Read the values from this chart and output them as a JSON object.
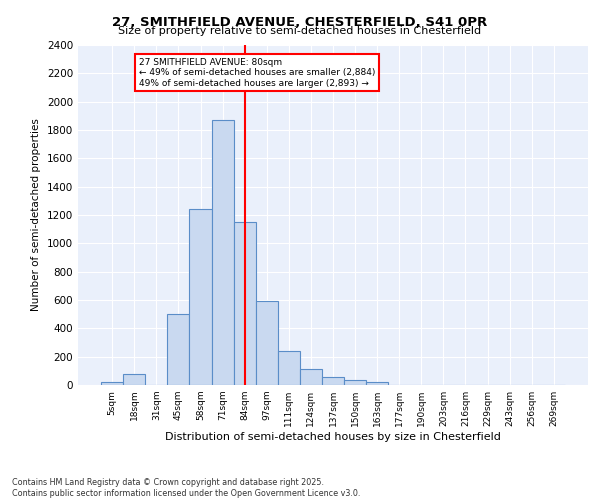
{
  "title1": "27, SMITHFIELD AVENUE, CHESTERFIELD, S41 0PR",
  "title2": "Size of property relative to semi-detached houses in Chesterfield",
  "xlabel": "Distribution of semi-detached houses by size in Chesterfield",
  "ylabel": "Number of semi-detached properties",
  "footer": "Contains HM Land Registry data © Crown copyright and database right 2025.\nContains public sector information licensed under the Open Government Licence v3.0.",
  "bin_labels": [
    "5sqm",
    "18sqm",
    "31sqm",
    "45sqm",
    "58sqm",
    "71sqm",
    "84sqm",
    "97sqm",
    "111sqm",
    "124sqm",
    "137sqm",
    "150sqm",
    "163sqm",
    "177sqm",
    "190sqm",
    "203sqm",
    "216sqm",
    "229sqm",
    "243sqm",
    "256sqm",
    "269sqm"
  ],
  "bar_values": [
    20,
    75,
    0,
    500,
    1240,
    1870,
    1150,
    590,
    240,
    110,
    60,
    35,
    20,
    0,
    0,
    0,
    0,
    0,
    0,
    0,
    0
  ],
  "bar_color": "#c9d9f0",
  "bar_edge_color": "#5a8dc8",
  "vline_x": 6.0,
  "vline_color": "red",
  "annotation_title": "27 SMITHFIELD AVENUE: 80sqm",
  "annotation_line1": "← 49% of semi-detached houses are smaller (2,884)",
  "annotation_line2": "49% of semi-detached houses are larger (2,893) →",
  "ylim": [
    0,
    2400
  ],
  "yticks": [
    0,
    200,
    400,
    600,
    800,
    1000,
    1200,
    1400,
    1600,
    1800,
    2000,
    2200,
    2400
  ],
  "plot_background": "#eaf0fb"
}
